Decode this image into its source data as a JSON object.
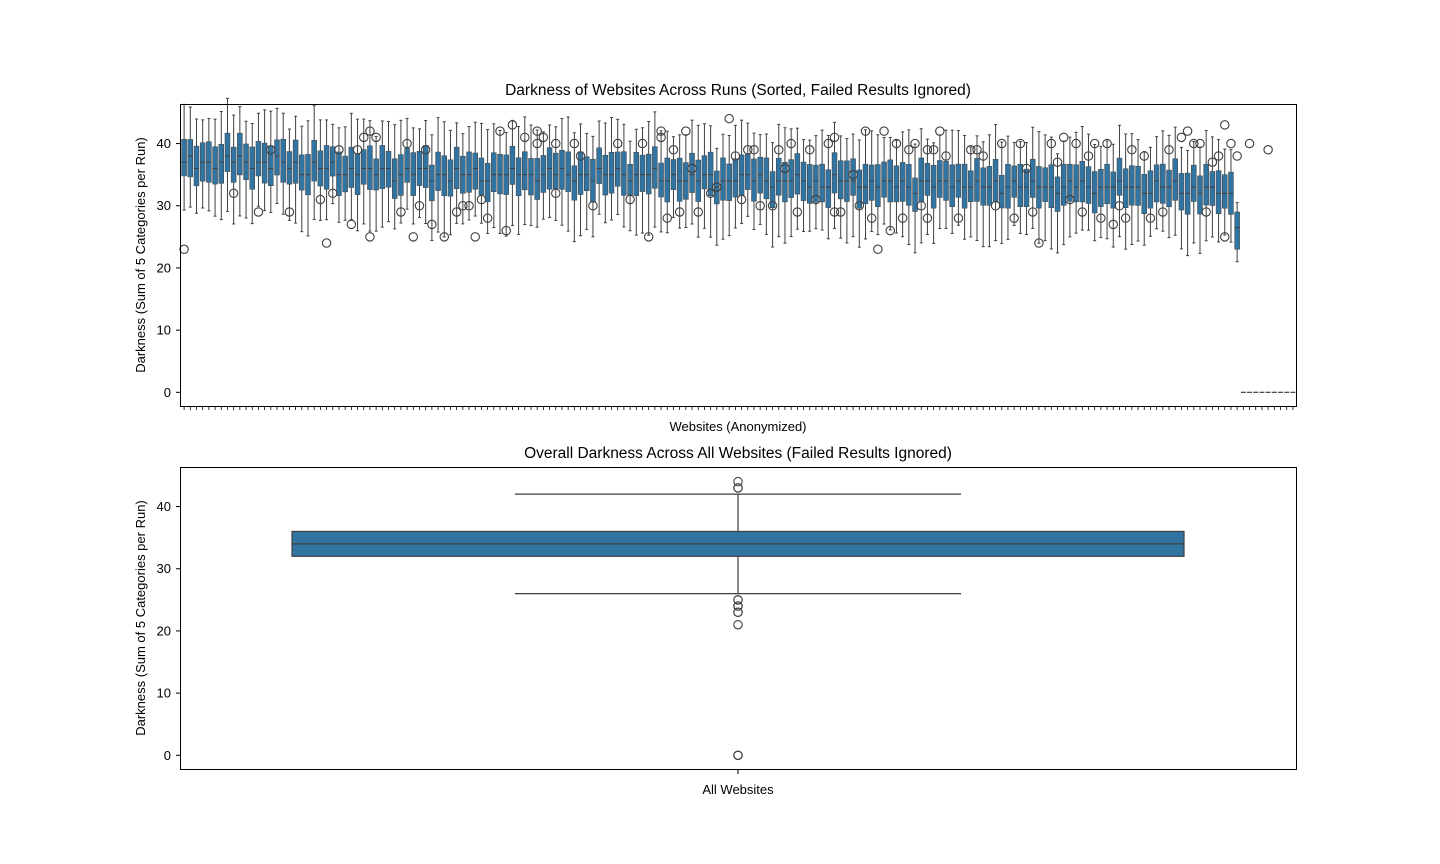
{
  "colors": {
    "box_fill": "#3274a1",
    "line": "#3f3f3f",
    "flier_edge": "#3f3f3f"
  },
  "chart_data": [
    {
      "type": "box",
      "title": "Darkness of Websites Across Runs (Sorted, Failed Results Ignored)",
      "xlabel": "Websites (Anonymized)",
      "ylabel": "Darkness (Sum of 5 Categories per Run)",
      "ylim": [
        -2.2,
        46.2
      ],
      "yticks": [
        0,
        10,
        20,
        30,
        40
      ],
      "grid": false,
      "category_count": 180,
      "category_tick_labels": "hidden",
      "median_profile": [
        [
          0,
          37
        ],
        [
          10,
          37
        ],
        [
          20,
          36
        ],
        [
          30,
          35.5
        ],
        [
          45,
          35
        ],
        [
          60,
          35
        ],
        [
          70,
          35
        ],
        [
          80,
          34.5
        ],
        [
          100,
          34
        ],
        [
          110,
          33.5
        ],
        [
          120,
          33.5
        ],
        [
          140,
          33
        ],
        [
          155,
          33
        ],
        [
          165,
          32.5
        ],
        [
          170,
          32
        ],
        [
          172,
          32
        ],
        [
          173,
          31
        ],
        [
          174,
          30
        ],
        [
          175,
          26
        ]
      ],
      "q1_offset": -2.2,
      "q3_offset": 2.4,
      "whisker_low_offset": -5.5,
      "whisker_high_offset": 4.6,
      "last_box": {
        "q1": 23,
        "median": 26.5,
        "q3": 29,
        "whisker_low": 21,
        "whisker_high": 30.5
      },
      "zero_group": {
        "start_index": 171,
        "value": 0
      },
      "fliers": [
        [
          0,
          23
        ],
        [
          8,
          32
        ],
        [
          12,
          29
        ],
        [
          14,
          39
        ],
        [
          17,
          29
        ],
        [
          22,
          31
        ],
        [
          23,
          24
        ],
        [
          24,
          32
        ],
        [
          25,
          39
        ],
        [
          27,
          27
        ],
        [
          28,
          39
        ],
        [
          29,
          41
        ],
        [
          30,
          42
        ],
        [
          30,
          25
        ],
        [
          31,
          41
        ],
        [
          35,
          29
        ],
        [
          36,
          40
        ],
        [
          37,
          25
        ],
        [
          38,
          30
        ],
        [
          39,
          39
        ],
        [
          40,
          27
        ],
        [
          42,
          25
        ],
        [
          44,
          29
        ],
        [
          45,
          30
        ],
        [
          46,
          30
        ],
        [
          47,
          25
        ],
        [
          48,
          31
        ],
        [
          49,
          28
        ],
        [
          51,
          42
        ],
        [
          52,
          26
        ],
        [
          53,
          43
        ],
        [
          55,
          41
        ],
        [
          57,
          42
        ],
        [
          57,
          40
        ],
        [
          58,
          41
        ],
        [
          60,
          40
        ],
        [
          60,
          32
        ],
        [
          63,
          40
        ],
        [
          64,
          38
        ],
        [
          66,
          30
        ],
        [
          70,
          40
        ],
        [
          72,
          31
        ],
        [
          74,
          40
        ],
        [
          75,
          25
        ],
        [
          77,
          42
        ],
        [
          77,
          41
        ],
        [
          78,
          28
        ],
        [
          79,
          39
        ],
        [
          80,
          29
        ],
        [
          81,
          42
        ],
        [
          82,
          36
        ],
        [
          83,
          29
        ],
        [
          85,
          32
        ],
        [
          86,
          33
        ],
        [
          88,
          44
        ],
        [
          89,
          38
        ],
        [
          90,
          31
        ],
        [
          91,
          39
        ],
        [
          92,
          39
        ],
        [
          93,
          30
        ],
        [
          95,
          30
        ],
        [
          96,
          39
        ],
        [
          97,
          36
        ],
        [
          98,
          40
        ],
        [
          99,
          29
        ],
        [
          101,
          39
        ],
        [
          102,
          31
        ],
        [
          104,
          40
        ],
        [
          105,
          41
        ],
        [
          105,
          29
        ],
        [
          106,
          29
        ],
        [
          108,
          35
        ],
        [
          109,
          30
        ],
        [
          110,
          42
        ],
        [
          111,
          28
        ],
        [
          112,
          23
        ],
        [
          113,
          42
        ],
        [
          114,
          26
        ],
        [
          115,
          40
        ],
        [
          116,
          28
        ],
        [
          117,
          39
        ],
        [
          118,
          40
        ],
        [
          119,
          30
        ],
        [
          120,
          39
        ],
        [
          120,
          28
        ],
        [
          121,
          39
        ],
        [
          122,
          42
        ],
        [
          123,
          38
        ],
        [
          125,
          28
        ],
        [
          127,
          39
        ],
        [
          128,
          39
        ],
        [
          129,
          38
        ],
        [
          131,
          30
        ],
        [
          132,
          40
        ],
        [
          134,
          28
        ],
        [
          135,
          40
        ],
        [
          136,
          36
        ],
        [
          137,
          29
        ],
        [
          138,
          24
        ],
        [
          140,
          40
        ],
        [
          141,
          37
        ],
        [
          142,
          41
        ],
        [
          143,
          31
        ],
        [
          144,
          40
        ],
        [
          145,
          29
        ],
        [
          146,
          38
        ],
        [
          147,
          40
        ],
        [
          148,
          28
        ],
        [
          149,
          40
        ],
        [
          150,
          27
        ],
        [
          151,
          30
        ],
        [
          152,
          28
        ],
        [
          153,
          39
        ],
        [
          155,
          38
        ],
        [
          156,
          28
        ],
        [
          158,
          29
        ],
        [
          159,
          39
        ],
        [
          161,
          41
        ],
        [
          162,
          42
        ],
        [
          163,
          40
        ],
        [
          164,
          40
        ],
        [
          165,
          29
        ],
        [
          166,
          37
        ],
        [
          167,
          38
        ],
        [
          168,
          43
        ],
        [
          168,
          25
        ],
        [
          169,
          40
        ],
        [
          170,
          38
        ],
        [
          172,
          40
        ],
        [
          175,
          39
        ]
      ]
    },
    {
      "type": "box",
      "title": "Overall Darkness Across All Websites (Failed Results Ignored)",
      "xlabel": "",
      "ylabel": "Darkness (Sum of 5 Categories per Run)",
      "categories": [
        "All Websites"
      ],
      "ylim": [
        -2.2,
        46.2
      ],
      "yticks": [
        0,
        10,
        20,
        30,
        40
      ],
      "grid": false,
      "box": {
        "whisker_low": 26,
        "q1": 32,
        "median": 34,
        "q3": 36,
        "whisker_high": 42
      },
      "fliers": [
        44,
        43,
        43,
        25,
        25,
        24,
        24,
        23,
        23,
        21,
        0,
        0,
        0
      ]
    }
  ]
}
